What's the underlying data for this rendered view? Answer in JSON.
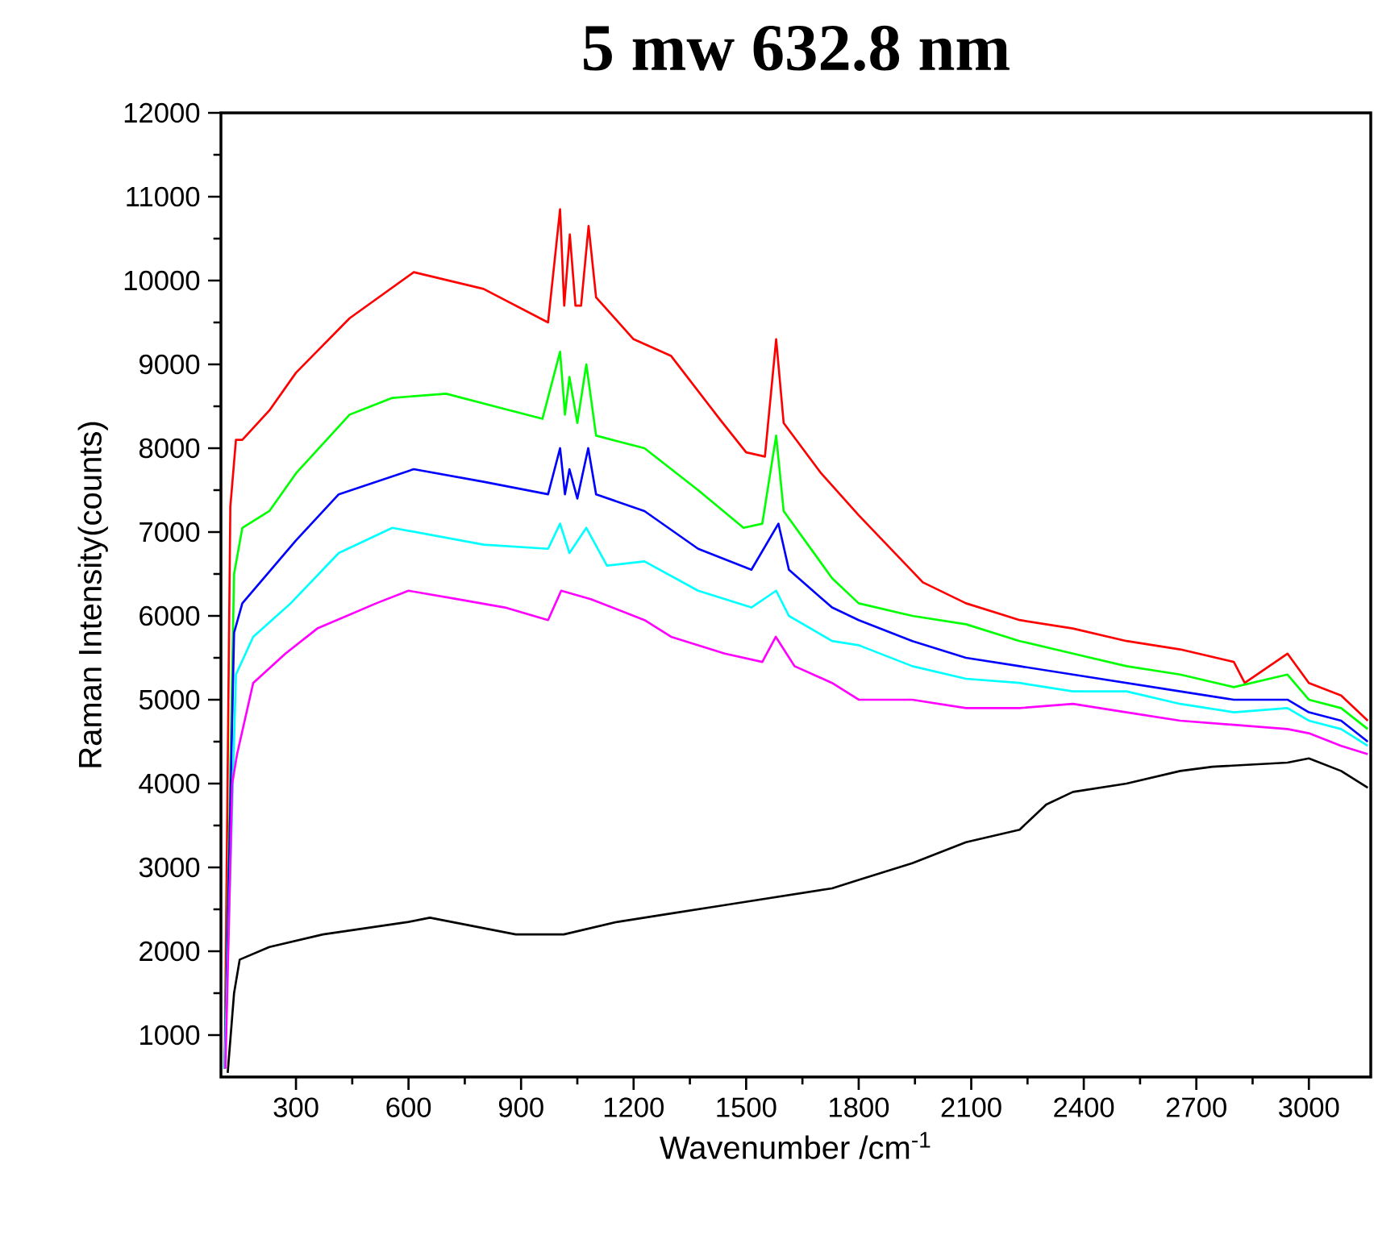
{
  "chart_data": {
    "type": "line",
    "title": "**5 mw 632.8 nm**",
    "xlabel": "Wavenumber /cm$^{-1}$",
    "ylabel": "Raman Intensity(counts)",
    "xlim": [
      100,
      3165
    ],
    "ylim": [
      500,
      12000
    ],
    "xticks": [
      300,
      600,
      900,
      1200,
      1500,
      1800,
      2100,
      2400,
      2700,
      3000
    ],
    "yticks": [
      1000,
      2000,
      3000,
      4000,
      5000,
      6000,
      7000,
      8000,
      9000,
      10000,
      11000,
      12000
    ],
    "grid": false,
    "marker": "none",
    "line_style": "solid",
    "series": [
      {
        "color": "#ff0000",
        "x": [
          110,
          125,
          140,
          157,
          229,
          300,
          443,
          614,
          800,
          972,
          1004,
          1015,
          1030,
          1045,
          1060,
          1080,
          1100,
          1200,
          1300,
          1429,
          1500,
          1550,
          1580,
          1600,
          1700,
          1800,
          1971,
          2086,
          2229,
          2371,
          2514,
          2657,
          2800,
          2829,
          2943,
          3000,
          3086,
          3157
        ],
        "values": [
          600,
          7300,
          8100,
          8100,
          8450,
          8900,
          9550,
          10100,
          9900,
          9500,
          10850,
          9700,
          10550,
          9700,
          9700,
          10650,
          9800,
          9300,
          9100,
          8350,
          7950,
          7900,
          9300,
          8300,
          7700,
          7200,
          6400,
          6150,
          5950,
          5850,
          5700,
          5600,
          5450,
          5200,
          5550,
          5200,
          5050,
          4750
        ]
      },
      {
        "color": "#00ff00",
        "x": [
          110,
          135,
          157,
          229,
          300,
          443,
          557,
          700,
          872,
          957,
          1004,
          1017,
          1029,
          1050,
          1074,
          1100,
          1229,
          1372,
          1493,
          1543,
          1580,
          1600,
          1729,
          1800,
          1943,
          2086,
          2229,
          2371,
          2514,
          2657,
          2800,
          2943,
          3000,
          3086,
          3157
        ],
        "values": [
          600,
          6500,
          7050,
          7250,
          7700,
          8400,
          8600,
          8650,
          8450,
          8350,
          9150,
          8400,
          8850,
          8300,
          9000,
          8150,
          8000,
          7500,
          7050,
          7100,
          8150,
          7250,
          6450,
          6150,
          6000,
          5900,
          5700,
          5550,
          5400,
          5300,
          5150,
          5300,
          5000,
          4900,
          4650
        ]
      },
      {
        "color": "#0000ff",
        "x": [
          110,
          135,
          157,
          300,
          414,
          614,
          800,
          972,
          1004,
          1017,
          1029,
          1050,
          1079,
          1100,
          1229,
          1372,
          1514,
          1586,
          1614,
          1729,
          1800,
          1943,
          2086,
          2229,
          2371,
          2514,
          2657,
          2800,
          2943,
          3000,
          3086,
          3157
        ],
        "values": [
          600,
          5800,
          6150,
          6900,
          7450,
          7750,
          7600,
          7450,
          8000,
          7450,
          7750,
          7400,
          8000,
          7450,
          7250,
          6800,
          6550,
          7100,
          6550,
          6100,
          5950,
          5700,
          5500,
          5400,
          5300,
          5200,
          5100,
          5000,
          5000,
          4850,
          4750,
          4500
        ]
      },
      {
        "color": "#00ffff",
        "x": [
          110,
          140,
          186,
          286,
          414,
          557,
          800,
          972,
          1004,
          1029,
          1074,
          1129,
          1229,
          1372,
          1514,
          1580,
          1614,
          1729,
          1800,
          1943,
          2086,
          2229,
          2371,
          2514,
          2657,
          2800,
          2943,
          3000,
          3086,
          3157
        ],
        "values": [
          600,
          5300,
          5750,
          6150,
          6750,
          7050,
          6850,
          6800,
          7100,
          6750,
          7050,
          6600,
          6650,
          6300,
          6100,
          6300,
          6000,
          5700,
          5650,
          5400,
          5250,
          5200,
          5100,
          5100,
          4950,
          4850,
          4900,
          4750,
          4650,
          4450
        ]
      },
      {
        "color": "#ff00ff",
        "x": [
          112,
          130,
          143,
          186,
          272,
          357,
          514,
          600,
          729,
          857,
          972,
          1007,
          1086,
          1229,
          1300,
          1443,
          1543,
          1579,
          1629,
          1729,
          1800,
          1943,
          2086,
          2229,
          2371,
          2514,
          2657,
          2800,
          2943,
          3000,
          3086,
          3157
        ],
        "values": [
          600,
          4000,
          4350,
          5200,
          5550,
          5850,
          6150,
          6300,
          6200,
          6100,
          5950,
          6300,
          6200,
          5950,
          5750,
          5550,
          5450,
          5750,
          5400,
          5200,
          5000,
          5000,
          4900,
          4900,
          4950,
          4850,
          4750,
          4700,
          4650,
          4600,
          4450,
          4350
        ]
      },
      {
        "color": "#000000",
        "x": [
          118,
          135,
          150,
          229,
          372,
          600,
          657,
          886,
          1014,
          1157,
          1300,
          1443,
          1729,
          1800,
          1943,
          2086,
          2229,
          2300,
          2371,
          2514,
          2657,
          2743,
          2943,
          3000,
          3086,
          3157
        ],
        "values": [
          550,
          1500,
          1900,
          2050,
          2200,
          2350,
          2400,
          2200,
          2200,
          2350,
          2450,
          2550,
          2750,
          2850,
          3050,
          3300,
          3450,
          3750,
          3900,
          4000,
          4150,
          4200,
          4250,
          4300,
          4150,
          3950
        ]
      }
    ]
  }
}
